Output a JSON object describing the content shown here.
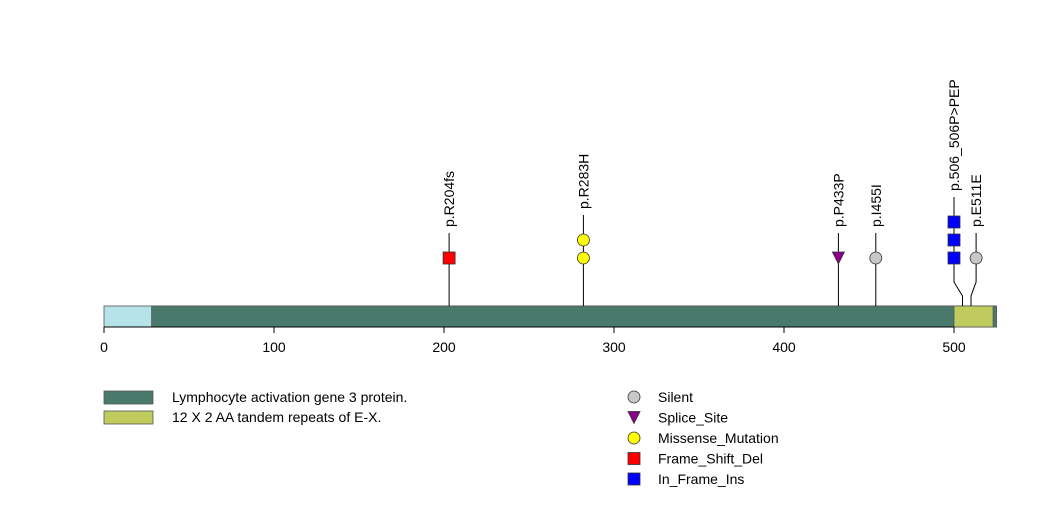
{
  "chart_data": {
    "type": "lollipop",
    "protein_length": 525,
    "x_ticks": [
      0,
      100,
      200,
      300,
      400,
      500
    ],
    "xlim": [
      0,
      525
    ],
    "colors": {
      "protein_base": "#b6e3e8",
      "Lymphocyte activation gene 3 protein.": "#4a7a6c",
      "12 X 2 AA tandem repeats of E-X.": "#bfcc5d",
      "Silent": "#c8c8c8",
      "Splice_Site": "#8b008b",
      "Missense_Mutation": "#ffff00",
      "Frame_Shift_Del": "#ff0000",
      "In_Frame_Ins": "#0000ff"
    },
    "domains": [
      {
        "name": "Lymphocyte activation gene 3 protein.",
        "start": 28,
        "end": 525
      },
      {
        "name": "12 X 2 AA tandem repeats of E-X.",
        "start": 500,
        "end": 523
      }
    ],
    "mutations": [
      {
        "label": "p.R204fs",
        "position": 203,
        "display_position": 203,
        "type": "Frame_Shift_Del",
        "count": 1,
        "shape": "square"
      },
      {
        "label": "p.R283H",
        "position": 282,
        "display_position": 282,
        "type": "Missense_Mutation",
        "count": 2,
        "shape": "circle"
      },
      {
        "label": "p.P433P",
        "position": 432,
        "display_position": 432,
        "type": "Splice_Site",
        "count": 1,
        "shape": "triangle"
      },
      {
        "label": "p.I455I",
        "position": 454,
        "display_position": 454,
        "type": "Silent",
        "count": 1,
        "shape": "circle"
      },
      {
        "label": "p.506_506P>PEP",
        "position": 505,
        "display_position": 500,
        "type": "In_Frame_Ins",
        "count": 3,
        "shape": "square"
      },
      {
        "label": "p.E511E",
        "position": 510,
        "display_position": 513,
        "type": "Silent",
        "count": 1,
        "shape": "circle"
      }
    ],
    "domain_legend": [
      {
        "name": "Lymphocyte activation gene 3 protein.",
        "color": "#4a7a6c"
      },
      {
        "name": "12 X 2 AA tandem repeats of E-X.",
        "color": "#bfcc5d"
      }
    ],
    "mutation_legend": [
      {
        "name": "Silent",
        "shape": "circle",
        "color": "#c8c8c8"
      },
      {
        "name": "Splice_Site",
        "shape": "triangle",
        "color": "#8b008b"
      },
      {
        "name": "Missense_Mutation",
        "shape": "circle",
        "color": "#ffff00"
      },
      {
        "name": "Frame_Shift_Del",
        "shape": "square",
        "color": "#ff0000"
      },
      {
        "name": "In_Frame_Ins",
        "shape": "square",
        "color": "#0000ff"
      }
    ]
  }
}
